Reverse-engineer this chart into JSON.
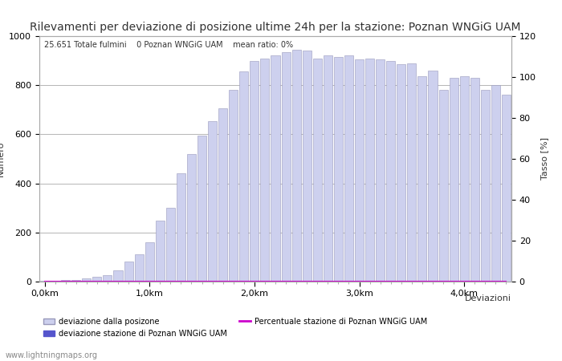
{
  "title": "Rilevamenti per deviazione di posizione ultime 24h per la stazione: Poznan WNGiG UAM",
  "subtitle": "25.651 Totale fulmini    0 Poznan WNGiG UAM    mean ratio: 0%",
  "xlabel": "Deviazioni",
  "ylabel_right": "Tasso [%]",
  "ylim_left": [
    0,
    1000
  ],
  "ylim_right": [
    0,
    120
  ],
  "xtick_labels": [
    "0,0km",
    "1,0km",
    "2,0km",
    "3,0km",
    "4,0km"
  ],
  "xtick_positions": [
    0,
    10,
    20,
    30,
    40
  ],
  "bar_values": [
    2,
    3,
    5,
    8,
    12,
    18,
    27,
    45,
    82,
    110,
    160,
    250,
    300,
    440,
    520,
    595,
    655,
    705,
    780,
    855,
    900,
    910,
    920,
    935,
    945,
    940,
    910,
    920,
    915,
    920,
    905,
    910,
    905,
    900,
    885,
    890,
    835,
    860,
    780,
    830,
    835,
    830,
    780,
    800,
    760
  ],
  "bar_color_light": "#cdd0ee",
  "bar_color_dark": "#5555cc",
  "bar_edge_color": "#9999bb",
  "ratio_line_color": "#cc00cc",
  "ratio_values": [
    0,
    0,
    0,
    0,
    0,
    0,
    0,
    0,
    0,
    0,
    0,
    0,
    0,
    0,
    0,
    0,
    0,
    0,
    0,
    0,
    0,
    0,
    0,
    0,
    0,
    0,
    0,
    0,
    0,
    0,
    0,
    0,
    0,
    0,
    0,
    0,
    0,
    0,
    0,
    0,
    0,
    0,
    0,
    0,
    0
  ],
  "grid_color": "#999999",
  "background_color": "#ffffff",
  "text_color": "#333333",
  "watermark": "www.lightningmaps.org",
  "legend_label_light": "deviazione dalla posizone",
  "legend_label_dark": "deviazione stazione di Poznan WNGiG UAM",
  "legend_label_line": "Percentuale stazione di Poznan WNGiG UAM",
  "title_fontsize": 10,
  "axis_fontsize": 8,
  "tick_fontsize": 8,
  "n_bars": 45
}
